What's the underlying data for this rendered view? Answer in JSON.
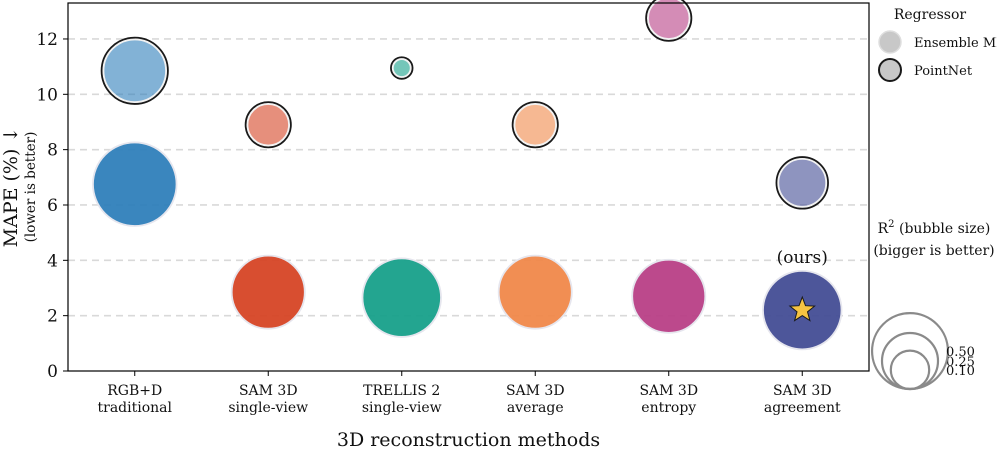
{
  "chart_data": {
    "type": "scatter",
    "xlabel": "3D reconstruction methods",
    "ylabel": "MAPE (%) ↓",
    "ylabel_sub": "(lower is better)",
    "ylim": [
      0,
      13.3
    ],
    "yticks": [
      0,
      2,
      4,
      6,
      8,
      10,
      12
    ],
    "grid": "horizontal dashed",
    "categories": [
      {
        "line1": "RGB+D",
        "line2": "traditional"
      },
      {
        "line1": "SAM 3D",
        "line2": "single-view"
      },
      {
        "line1": "TRELLIS 2",
        "line2": "single-view"
      },
      {
        "line1": "SAM 3D",
        "line2": "average"
      },
      {
        "line1": "SAM 3D",
        "line2": "entropy"
      },
      {
        "line1": "SAM 3D",
        "line2": "agreement"
      }
    ],
    "colors": [
      "#2f7fba",
      "#d64525",
      "#17a08a",
      "#f0884a",
      "#b83f86",
      "#434d95"
    ],
    "series": [
      {
        "name": "Ensemble ML",
        "points": [
          {
            "category": 0,
            "mape": 6.75,
            "r2": 0.62
          },
          {
            "category": 1,
            "mape": 2.85,
            "r2": 0.46
          },
          {
            "category": 2,
            "mape": 2.65,
            "r2": 0.54
          },
          {
            "category": 3,
            "mape": 2.85,
            "r2": 0.46
          },
          {
            "category": 4,
            "mape": 2.7,
            "r2": 0.46
          },
          {
            "category": 5,
            "mape": 2.2,
            "r2": 0.54
          }
        ]
      },
      {
        "name": "PointNet",
        "points": [
          {
            "category": 0,
            "mape": 10.85,
            "r2": 0.32
          },
          {
            "category": 1,
            "mape": 8.9,
            "r2": 0.12
          },
          {
            "category": 2,
            "mape": 10.95,
            "r2": 0.01
          },
          {
            "category": 3,
            "mape": 8.9,
            "r2": 0.12
          },
          {
            "category": 4,
            "mape": 12.75,
            "r2": 0.12
          },
          {
            "category": 5,
            "mape": 6.8,
            "r2": 0.17
          }
        ]
      }
    ],
    "annotation": {
      "text": "(ours)",
      "category": 5,
      "marker": "star"
    },
    "legend": {
      "placement": "right",
      "regressor_title": "Regressor",
      "regressor_entries": [
        "Ensemble ML",
        "PointNet"
      ],
      "size_title_prefix": "R",
      "size_title_sup": "2",
      "size_title_suffix": " (bubble size)",
      "size_subtitle": "(bigger is better)",
      "size_entries": [
        {
          "label": "0.10",
          "r2": 0.1
        },
        {
          "label": "0.25",
          "r2": 0.25
        },
        {
          "label": "0.50",
          "r2": 0.5
        }
      ]
    }
  }
}
